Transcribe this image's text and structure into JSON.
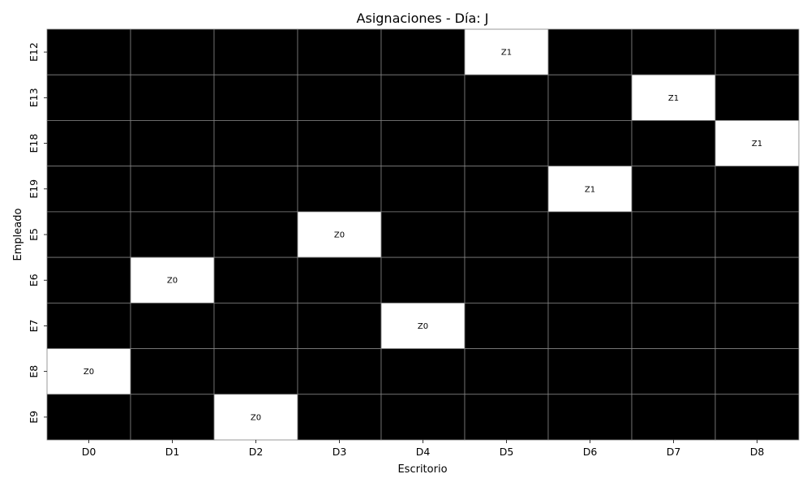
{
  "chart_data": {
    "type": "heatmap",
    "title": "Asignaciones - Día: J",
    "xlabel": "Escritorio",
    "ylabel": "Empleado",
    "x_categories": [
      "D0",
      "D1",
      "D2",
      "D3",
      "D4",
      "D5",
      "D6",
      "D7",
      "D8"
    ],
    "y_categories": [
      "E12",
      "E13",
      "E18",
      "E19",
      "E5",
      "E6",
      "E7",
      "E8",
      "E9"
    ],
    "assignments": [
      {
        "employee": "E12",
        "desk": "D5",
        "label": "Z1"
      },
      {
        "employee": "E13",
        "desk": "D7",
        "label": "Z1"
      },
      {
        "employee": "E18",
        "desk": "D8",
        "label": "Z1"
      },
      {
        "employee": "E19",
        "desk": "D6",
        "label": "Z1"
      },
      {
        "employee": "E5",
        "desk": "D3",
        "label": "Z0"
      },
      {
        "employee": "E6",
        "desk": "D1",
        "label": "Z0"
      },
      {
        "employee": "E7",
        "desk": "D4",
        "label": "Z0"
      },
      {
        "employee": "E8",
        "desk": "D0",
        "label": "Z0"
      },
      {
        "employee": "E9",
        "desk": "D2",
        "label": "Z0"
      }
    ],
    "colors": {
      "unassigned": "#000000",
      "assigned": "#ffffff",
      "gridline": "#808080"
    },
    "grid": true,
    "legend": false
  }
}
